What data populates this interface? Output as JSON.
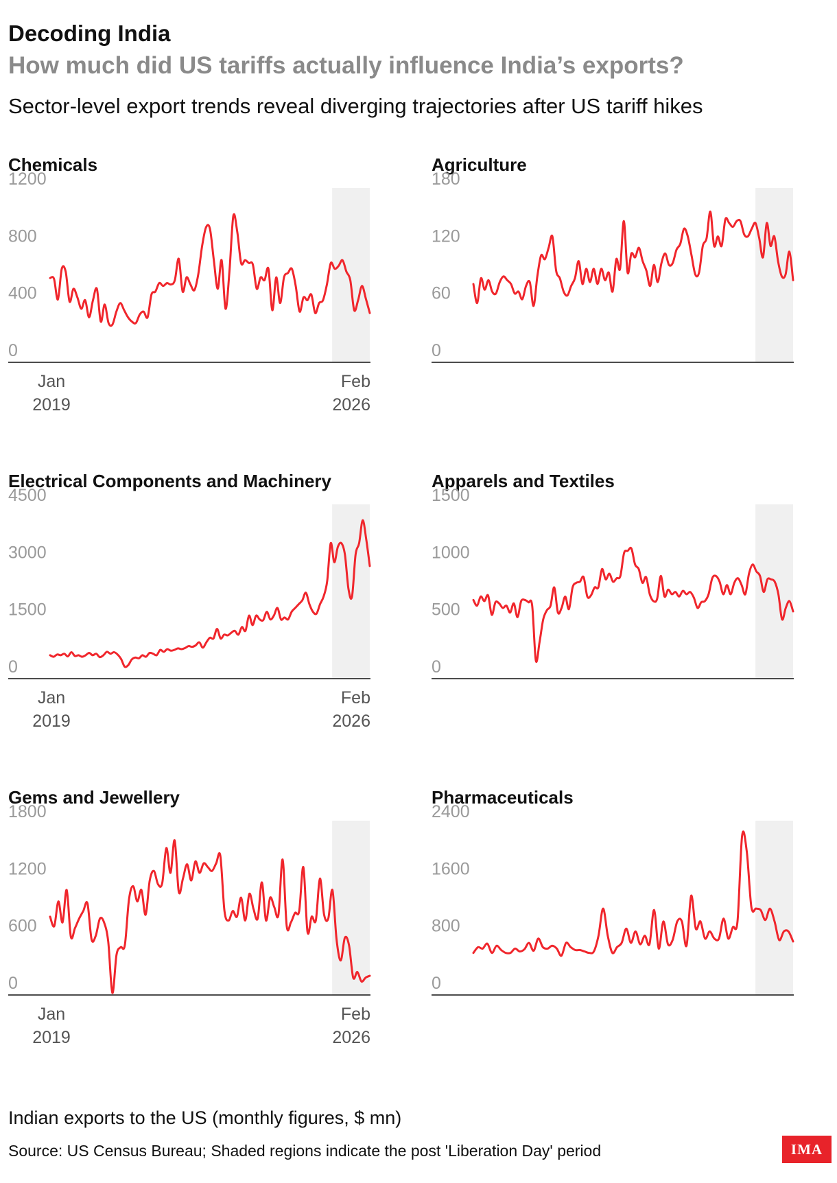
{
  "header": {
    "kicker": "Decoding India",
    "headline": "How much did US tariffs actually influence India’s exports?",
    "subtitle": "Sector-level export trends reveal diverging trajectories after US tariff hikes"
  },
  "footer": {
    "note": "Indian exports to the US (monthly figures, $ mn)",
    "source": "Source: US Census Bureau; Shaded regions indicate the post 'Liberation Day' period",
    "logo": "IMA"
  },
  "colors": {
    "line": "#f0262c",
    "shade": "#f0f0f0",
    "axis": "#111111",
    "tick": "#9a9a9a"
  },
  "chart_data": [
    {
      "type": "line",
      "title": "Chemicals",
      "x_start": "Jan 2019",
      "x_end": "Feb 2026",
      "x_label_start": [
        "Jan",
        "2019"
      ],
      "x_label_end": [
        "Feb",
        "2026"
      ],
      "ylim": [
        0,
        1200
      ],
      "yticks": [
        0,
        400,
        800,
        1200
      ],
      "shaded_from": "Apr 2025",
      "series": [
        {
          "values": [
            575,
            570,
            425,
            640,
            620,
            410,
            500,
            440,
            360,
            420,
            300,
            420,
            500,
            270,
            390,
            260,
            250,
            340,
            400,
            350,
            300,
            270,
            260,
            320,
            340,
            300,
            460,
            480,
            540,
            520,
            540,
            530,
            560,
            710,
            480,
            580,
            530,
            490,
            600,
            800,
            930,
            920,
            700,
            500,
            700,
            360,
            620,
            1010,
            900,
            680,
            700,
            680,
            670,
            500,
            580,
            560,
            640,
            350,
            580,
            400,
            580,
            610,
            640,
            520,
            340,
            440,
            420,
            460,
            330,
            400,
            420,
            530,
            680,
            640,
            660,
            700,
            620,
            560,
            350,
            420,
            520,
            430,
            330
          ]
        }
      ]
    },
    {
      "type": "line",
      "title": "Agriculture",
      "x_start": "Jan 2019",
      "x_end": "Feb 2026",
      "ylim": [
        0,
        180
      ],
      "yticks": [
        0,
        60,
        120,
        180
      ],
      "shaded_from": "Apr 2025",
      "series": [
        {
          "values": [
            80,
            60,
            86,
            74,
            84,
            72,
            70,
            82,
            88,
            84,
            80,
            70,
            72,
            64,
            78,
            82,
            57,
            88,
            110,
            106,
            118,
            130,
            94,
            86,
            72,
            68,
            78,
            86,
            104,
            80,
            96,
            82,
            96,
            80,
            96,
            84,
            92,
            72,
            106,
            96,
            146,
            92,
            112,
            108,
            118,
            104,
            94,
            78,
            100,
            82,
            102,
            112,
            100,
            102,
            116,
            122,
            138,
            130,
            110,
            90,
            92,
            120,
            128,
            156,
            120,
            130,
            120,
            148,
            144,
            140,
            146,
            146,
            132,
            130,
            138,
            144,
            128,
            108,
            144,
            120,
            130,
            104,
            88,
            90,
            114,
            84
          ]
        }
      ]
    },
    {
      "type": "line",
      "title": "Electrical Components and Machinery",
      "x_start": "Jan 2019",
      "x_end": "Feb 2026",
      "x_label_start": [
        "Jan",
        "2019"
      ],
      "x_label_end": [
        "Feb",
        "2026"
      ],
      "ylim": [
        0,
        4500
      ],
      "yticks": [
        0,
        1500,
        3000,
        4500
      ],
      "shaded_from": "Apr 2025",
      "series": [
        {
          "values": [
            560,
            520,
            580,
            560,
            600,
            530,
            640,
            540,
            560,
            520,
            560,
            620,
            560,
            600,
            510,
            560,
            650,
            600,
            640,
            580,
            460,
            260,
            300,
            450,
            500,
            480,
            560,
            520,
            620,
            600,
            560,
            700,
            650,
            720,
            680,
            700,
            740,
            720,
            750,
            800,
            780,
            820,
            900,
            760,
            900,
            1020,
            1000,
            1250,
            1000,
            1100,
            1080,
            1150,
            1200,
            1100,
            1300,
            1200,
            1600,
            1350,
            1600,
            1500,
            1480,
            1700,
            1500,
            1600,
            1800,
            1500,
            1550,
            1500,
            1700,
            1800,
            1900,
            2000,
            2200,
            1900,
            1700,
            1650,
            1900,
            2100,
            2500,
            3500,
            3000,
            3400,
            3500,
            3200,
            2300,
            2100,
            3200,
            3500,
            4100,
            3600,
            2900
          ]
        }
      ]
    },
    {
      "type": "line",
      "title": "Apparels and Textiles",
      "x_start": "Jan 2019",
      "x_end": "Feb 2026",
      "ylim": [
        0,
        1500
      ],
      "yticks": [
        0,
        500,
        1000,
        1500
      ],
      "shaded_from": "Apr 2025",
      "series": [
        {
          "values": [
            670,
            620,
            700,
            660,
            710,
            540,
            650,
            640,
            600,
            620,
            560,
            640,
            520,
            660,
            670,
            650,
            620,
            140,
            300,
            500,
            580,
            620,
            780,
            560,
            600,
            700,
            590,
            780,
            820,
            830,
            870,
            700,
            710,
            780,
            780,
            940,
            850,
            900,
            830,
            860,
            880,
            1080,
            1100,
            1120,
            980,
            940,
            820,
            870,
            720,
            660,
            680,
            880,
            700,
            760,
            720,
            740,
            700,
            750,
            720,
            740,
            690,
            600,
            650,
            660,
            720,
            860,
            880,
            830,
            720,
            800,
            720,
            820,
            860,
            800,
            720,
            900,
            980,
            920,
            880,
            740,
            850,
            850,
            830,
            720,
            500,
            600,
            660,
            570
          ]
        }
      ]
    },
    {
      "type": "line",
      "title": "Gems and Jewellery",
      "x_start": "Jan 2019",
      "x_end": "Feb 2026",
      "x_label_start": [
        "Jan",
        "2019"
      ],
      "x_label_end": [
        "Feb",
        "2026"
      ],
      "ylim": [
        0,
        1800
      ],
      "yticks": [
        0,
        600,
        1200,
        1800
      ],
      "shaded_from": "Apr 2025",
      "series": [
        {
          "values": [
            800,
            700,
            960,
            740,
            1080,
            590,
            680,
            780,
            860,
            940,
            560,
            600,
            780,
            740,
            540,
            0,
            400,
            480,
            500,
            980,
            1120,
            960,
            1080,
            820,
            1180,
            1280,
            1140,
            1150,
            1520,
            1260,
            1600,
            1060,
            1200,
            1350,
            1180,
            1380,
            1260,
            1360,
            1320,
            1280,
            1360,
            1440,
            860,
            760,
            860,
            800,
            1000,
            760,
            1040,
            880,
            780,
            1160,
            760,
            1000,
            900,
            820,
            1400,
            700,
            740,
            840,
            860,
            1320,
            640,
            800,
            760,
            1200,
            820,
            780,
            1080,
            560,
            340,
            580,
            500,
            160,
            220,
            120,
            160,
            180
          ]
        }
      ]
    },
    {
      "type": "line",
      "title": "Pharmaceuticals",
      "x_start": "Jan 2019",
      "x_end": "Feb 2026",
      "ylim": [
        0,
        2400
      ],
      "yticks": [
        0,
        800,
        1600,
        2400
      ],
      "shaded_from": "Apr 2025",
      "series": [
        {
          "values": [
            560,
            640,
            620,
            690,
            560,
            660,
            600,
            560,
            560,
            620,
            580,
            610,
            700,
            590,
            760,
            640,
            620,
            660,
            620,
            520,
            700,
            640,
            600,
            600,
            580,
            560,
            580,
            800,
            1180,
            800,
            560,
            640,
            700,
            900,
            700,
            860,
            680,
            800,
            680,
            1160,
            620,
            1000,
            680,
            740,
            1000,
            1000,
            660,
            1360,
            900,
            1000,
            760,
            860,
            760,
            760,
            1040,
            760,
            920,
            1000,
            2200,
            1980,
            1200,
            1180,
            1160,
            1020,
            1180,
            1000,
            740,
            860,
            860,
            720
          ]
        }
      ]
    }
  ]
}
